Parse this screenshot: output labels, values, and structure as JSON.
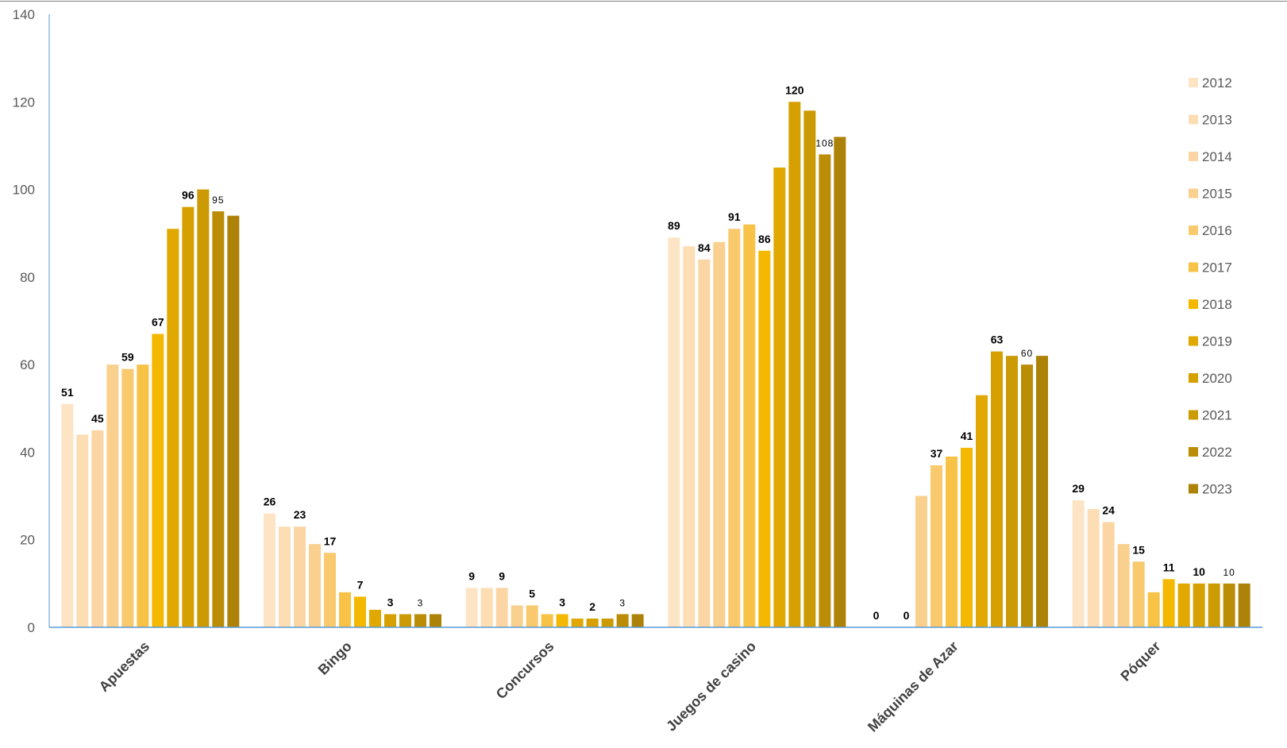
{
  "chart_data": {
    "type": "bar",
    "categories": [
      "Apuestas",
      "Bingo",
      "Concursos",
      "Juegos de casino",
      "Máquinas de Azar",
      "Póquer"
    ],
    "ylim": [
      0,
      140
    ],
    "yticks": [
      "0",
      "20",
      "40",
      "60",
      "80",
      "100",
      "120",
      "140"
    ],
    "ytick_values": [
      0,
      20,
      40,
      60,
      80,
      100,
      120,
      140
    ],
    "grid": false,
    "legend_position": "right",
    "series": [
      {
        "name": "2012",
        "color": "#FCE4C4",
        "values": [
          51,
          26,
          9,
          89,
          0,
          29
        ]
      },
      {
        "name": "2013",
        "color": "#FCDDB4",
        "values": [
          44,
          23,
          9,
          87,
          0,
          27
        ]
      },
      {
        "name": "2014",
        "color": "#FBD5A3",
        "values": [
          45,
          23,
          9,
          84,
          0,
          24
        ]
      },
      {
        "name": "2015",
        "color": "#FAD08E",
        "values": [
          60,
          19,
          5,
          88,
          30,
          19
        ]
      },
      {
        "name": "2016",
        "color": "#F9C96E",
        "values": [
          59,
          17,
          5,
          91,
          37,
          15
        ]
      },
      {
        "name": "2017",
        "color": "#F8C246",
        "values": [
          60,
          8,
          3,
          92,
          39,
          8
        ]
      },
      {
        "name": "2018",
        "color": "#F4B800",
        "values": [
          67,
          7,
          3,
          86,
          41,
          11
        ]
      },
      {
        "name": "2019",
        "color": "#E0A800",
        "values": [
          91,
          4,
          2,
          105,
          53,
          10
        ]
      },
      {
        "name": "2020",
        "color": "#D6A000",
        "values": [
          96,
          3,
          2,
          120,
          63,
          10
        ]
      },
      {
        "name": "2021",
        "color": "#CC9A04",
        "values": [
          100,
          3,
          2,
          118,
          62,
          10
        ]
      },
      {
        "name": "2022",
        "color": "#BB8C06",
        "values": [
          95,
          3,
          3,
          108,
          60,
          10
        ]
      },
      {
        "name": "2023",
        "color": "#AD8208",
        "values": [
          94,
          3,
          3,
          112,
          62,
          10
        ]
      }
    ],
    "data_labels": [
      {
        "category": 0,
        "series": 0,
        "text": "51",
        "small": false
      },
      {
        "category": 0,
        "series": 2,
        "text": "45",
        "small": false
      },
      {
        "category": 0,
        "series": 4,
        "text": "59",
        "small": false
      },
      {
        "category": 0,
        "series": 6,
        "text": "67",
        "small": false
      },
      {
        "category": 0,
        "series": 8,
        "text": "96",
        "small": false
      },
      {
        "category": 0,
        "series": 10,
        "text": "95",
        "small": true
      },
      {
        "category": 1,
        "series": 0,
        "text": "26",
        "small": false
      },
      {
        "category": 1,
        "series": 2,
        "text": "23",
        "small": false
      },
      {
        "category": 1,
        "series": 4,
        "text": "17",
        "small": false
      },
      {
        "category": 1,
        "series": 6,
        "text": "7",
        "small": false
      },
      {
        "category": 1,
        "series": 8,
        "text": "3",
        "small": false
      },
      {
        "category": 1,
        "series": 10,
        "text": "3",
        "small": true
      },
      {
        "category": 2,
        "series": 0,
        "text": "9",
        "small": false
      },
      {
        "category": 2,
        "series": 2,
        "text": "9",
        "small": false
      },
      {
        "category": 2,
        "series": 4,
        "text": "5",
        "small": false
      },
      {
        "category": 2,
        "series": 6,
        "text": "3",
        "small": false
      },
      {
        "category": 2,
        "series": 8,
        "text": "2",
        "small": false
      },
      {
        "category": 2,
        "series": 10,
        "text": "3",
        "small": true
      },
      {
        "category": 3,
        "series": 0,
        "text": "89",
        "small": false
      },
      {
        "category": 3,
        "series": 2,
        "text": "84",
        "small": false
      },
      {
        "category": 3,
        "series": 4,
        "text": "91",
        "small": false
      },
      {
        "category": 3,
        "series": 6,
        "text": "86",
        "small": false
      },
      {
        "category": 3,
        "series": 8,
        "text": "120",
        "small": false
      },
      {
        "category": 3,
        "series": 10,
        "text": "108",
        "small": true
      },
      {
        "category": 4,
        "series": 0,
        "text": "0",
        "small": false
      },
      {
        "category": 4,
        "series": 2,
        "text": "0",
        "small": false
      },
      {
        "category": 4,
        "series": 4,
        "text": "37",
        "small": false
      },
      {
        "category": 4,
        "series": 6,
        "text": "41",
        "small": false
      },
      {
        "category": 4,
        "series": 8,
        "text": "63",
        "small": false
      },
      {
        "category": 4,
        "series": 10,
        "text": "60",
        "small": true
      },
      {
        "category": 5,
        "series": 0,
        "text": "29",
        "small": false
      },
      {
        "category": 5,
        "series": 2,
        "text": "24",
        "small": false
      },
      {
        "category": 5,
        "series": 4,
        "text": "15",
        "small": false
      },
      {
        "category": 5,
        "series": 6,
        "text": "11",
        "small": false
      },
      {
        "category": 5,
        "series": 8,
        "text": "10",
        "small": false
      },
      {
        "category": 5,
        "series": 10,
        "text": "10",
        "small": true
      }
    ]
  }
}
